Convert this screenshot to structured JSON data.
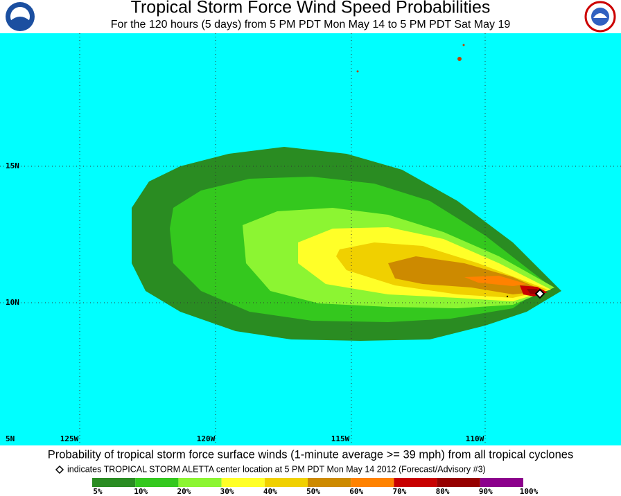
{
  "header": {
    "title": "Tropical Storm Force Wind Speed Probabilities",
    "subtitle": "For the 120 hours (5 days) from 5 PM PDT Mon May 14 to 5 PM PDT Sat May 19"
  },
  "map": {
    "lat_labels": [
      "15N",
      "10N",
      "5N"
    ],
    "lon_labels": [
      "125W",
      "120W",
      "115W",
      "110W"
    ]
  },
  "footer": {
    "caption": "Probability of tropical storm force surface winds (1-minute average >= 39 mph) from all tropical cyclones",
    "note": "indicates TROPICAL STORM ALETTA center location at 5 PM PDT Mon May 14 2012 (Forecast/Advisory #3)"
  },
  "legend": {
    "labels": [
      "5%",
      "10%",
      "20%",
      "30%",
      "40%",
      "50%",
      "60%",
      "70%",
      "80%",
      "90%",
      "100%"
    ],
    "colors": [
      "#2a8c22",
      "#34c81e",
      "#8cf532",
      "#ffff28",
      "#f0d000",
      "#cd8a00",
      "#ff8200",
      "#c80000",
      "#960000",
      "#8c008c"
    ]
  }
}
